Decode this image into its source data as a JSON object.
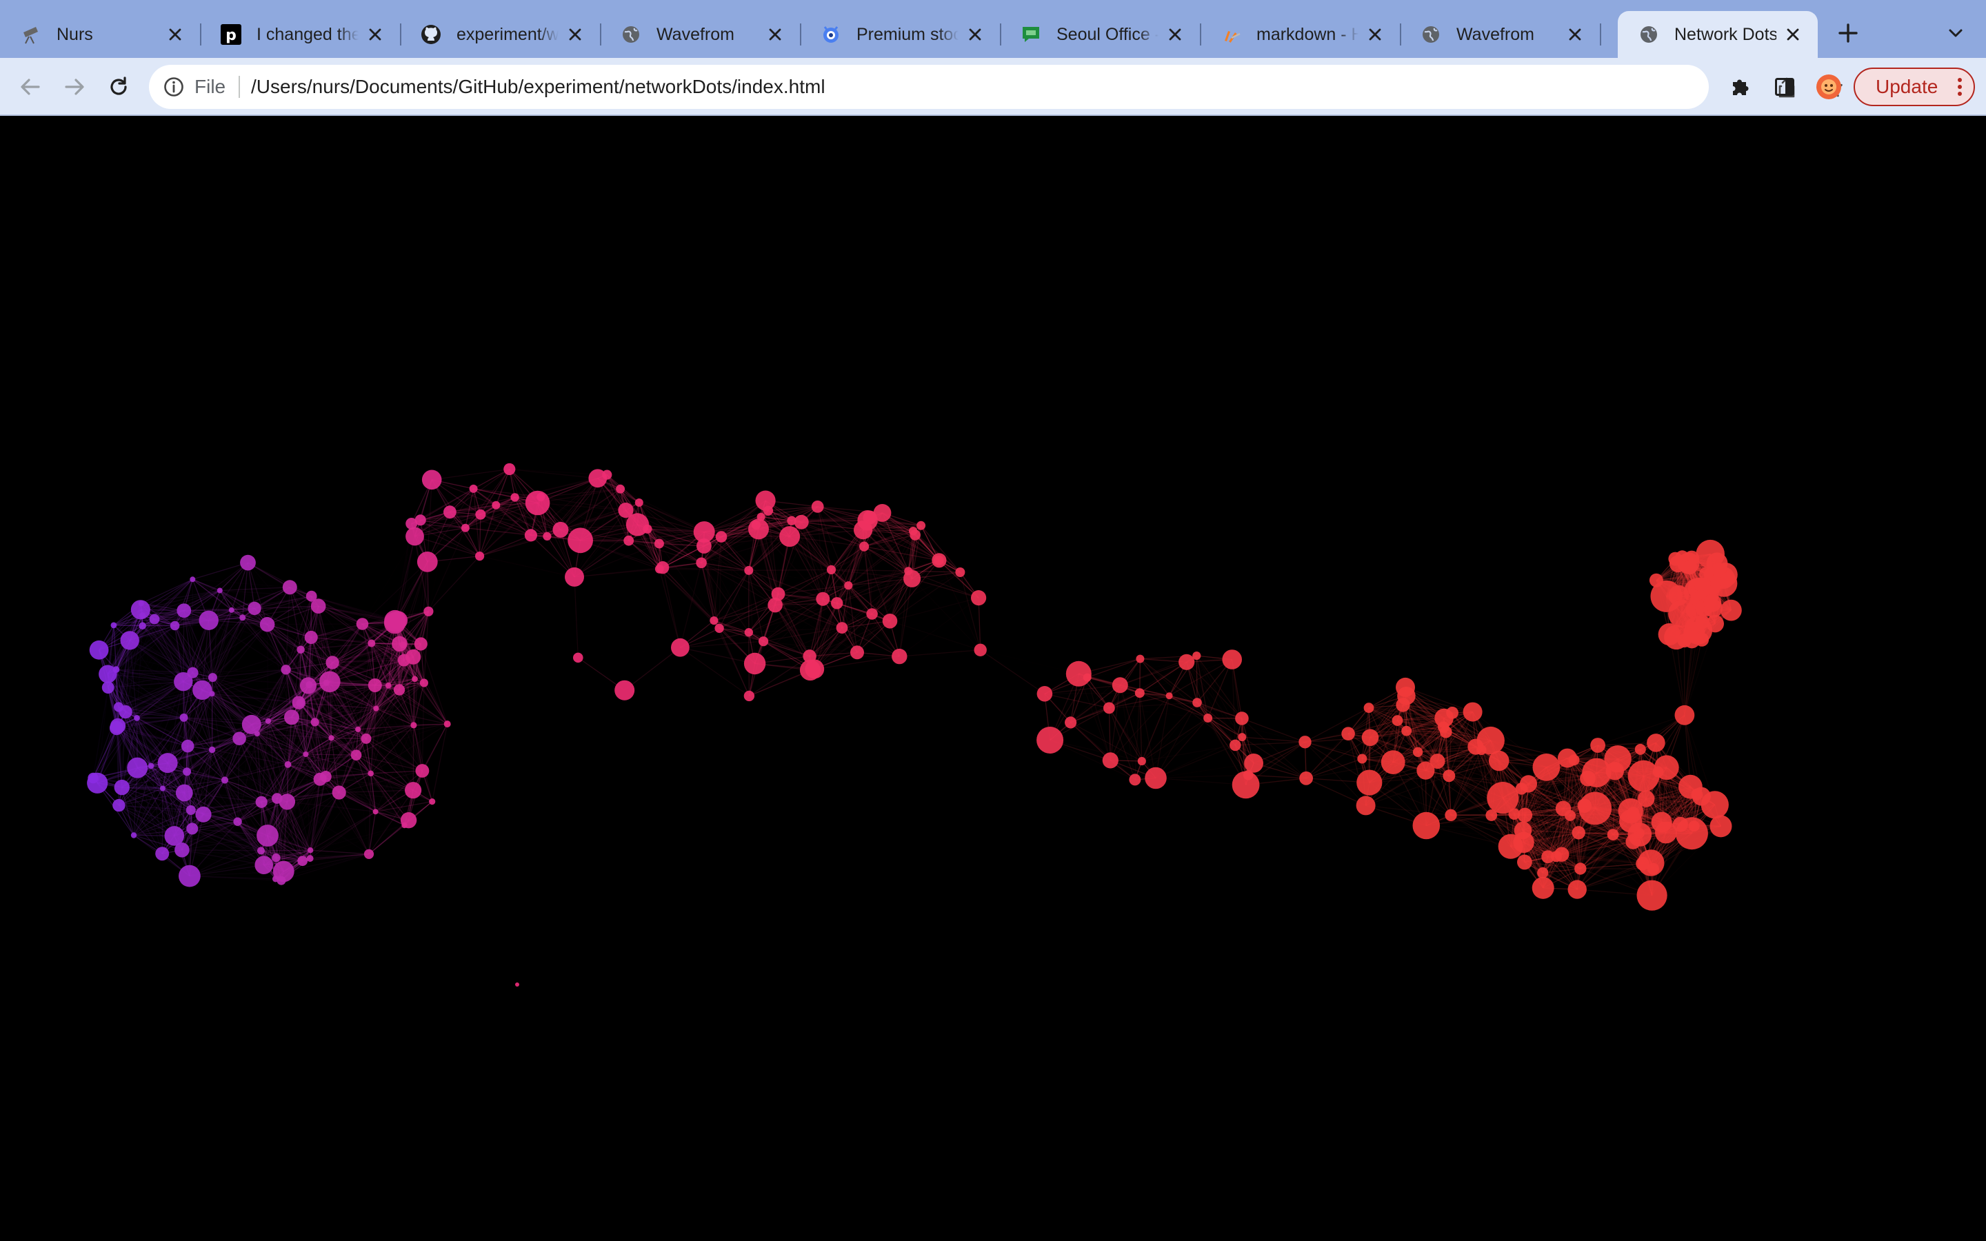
{
  "tabs": [
    {
      "title": "Nurs",
      "favicon": "telescope-icon",
      "active": false
    },
    {
      "title": "I changed the",
      "favicon": "p-logo-icon",
      "active": false
    },
    {
      "title": "experiment/wa",
      "favicon": "github-icon",
      "active": false
    },
    {
      "title": "Wavefrom",
      "favicon": "globe-icon",
      "active": false
    },
    {
      "title": "Premium stock",
      "favicon": "gear-eye-icon",
      "active": false
    },
    {
      "title": "Seoul Office -",
      "favicon": "chat-icon",
      "active": false
    },
    {
      "title": "markdown - H",
      "favicon": "stack-icon",
      "active": false
    },
    {
      "title": "Wavefrom",
      "favicon": "globe-icon",
      "active": false
    },
    {
      "title": "Network Dots",
      "favicon": "globe-icon",
      "active": true
    }
  ],
  "toolbar": {
    "scheme_label": "File",
    "url": "/Users/nurs/Documents/GitHub/experiment/networkDots/index.html",
    "update_label": "Update"
  },
  "colors": {
    "tabstrip": "#8fa9de",
    "toolbar": "#dfe8f8",
    "page_background": "#000000",
    "dot_purple": "#8a2be2",
    "dot_pink": "#ee2a7b",
    "dot_red": "#f13a3a"
  },
  "icons": {
    "back": "back-arrow-icon",
    "forward": "forward-arrow-icon",
    "reload": "reload-icon",
    "info": "info-icon",
    "share": "share-icon",
    "bookmark": "star-icon",
    "extensions": "puzzle-icon",
    "side_panel": "side-panel-icon",
    "profile": "avatar",
    "menu": "kebab-menu-icon",
    "new_tab": "plus-icon",
    "tab_search": "chevron-down-icon"
  }
}
